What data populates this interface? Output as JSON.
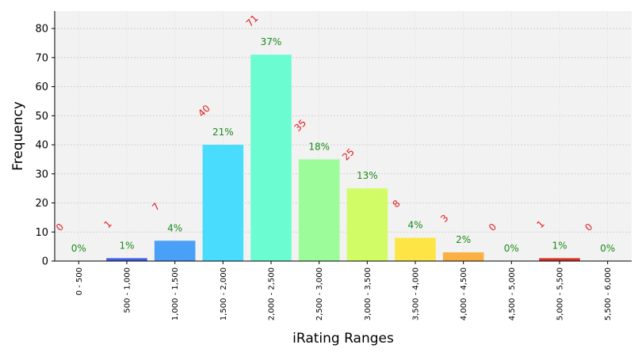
{
  "chart_data": {
    "type": "bar",
    "title": "",
    "xlabel": "iRating Ranges",
    "ylabel": "Frequency",
    "ylim": [
      0,
      86
    ],
    "yticks": [
      0,
      10,
      20,
      30,
      40,
      50,
      60,
      70,
      80
    ],
    "grid": true,
    "categories": [
      "0 - 500",
      "500 - 1,000",
      "1,000 - 1,500",
      "1,500 - 2,000",
      "2,000 - 2,500",
      "2,500 - 3,000",
      "3,000 - 3,500",
      "3,500 - 4,000",
      "4,000 - 4,500",
      "4,500 - 5,000",
      "5,000 - 5,500",
      "5,500 - 6,000"
    ],
    "values": [
      0,
      1,
      7,
      40,
      71,
      35,
      25,
      8,
      3,
      0,
      1,
      0
    ],
    "count_labels": [
      "0",
      "1",
      "7",
      "40",
      "71",
      "35",
      "25",
      "8",
      "3",
      "0",
      "1",
      "0"
    ],
    "percent_labels": [
      "0%",
      "1%",
      "4%",
      "21%",
      "37%",
      "18%",
      "13%",
      "4%",
      "2%",
      "0%",
      "1%",
      "0%"
    ],
    "colors": [
      "#3b2fd6",
      "#4262e8",
      "#4aa0f7",
      "#4adcfc",
      "#6cfcd2",
      "#9dfc9a",
      "#d2fc66",
      "#fce544",
      "#fbb044",
      "#f56a30",
      "#d8352a",
      "#a81e12"
    ]
  }
}
